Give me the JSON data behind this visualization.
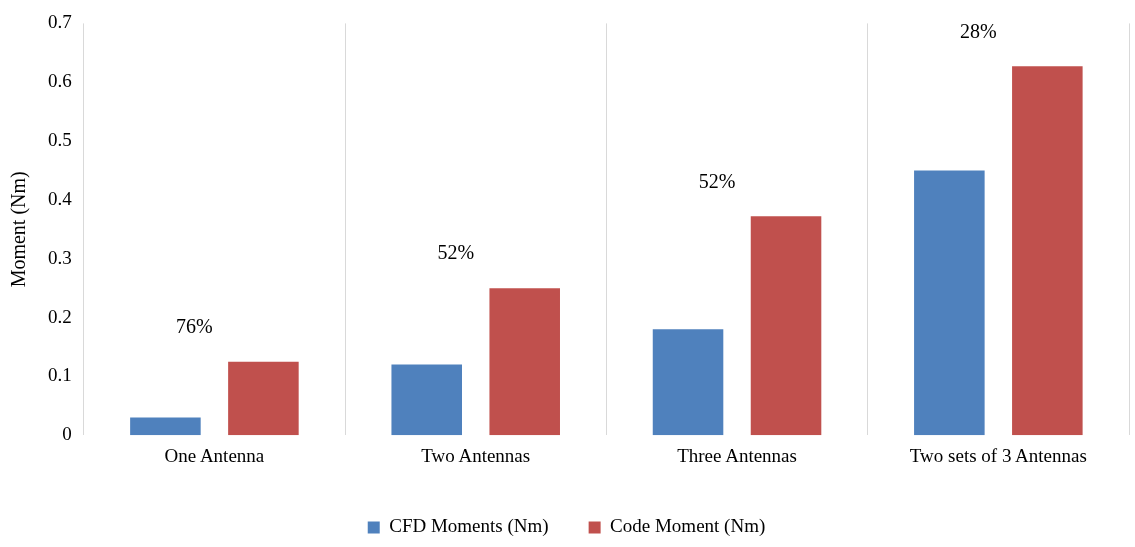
{
  "chart_data": {
    "type": "bar",
    "ylabel": "Moment (Nm)",
    "categories": [
      "One Antenna",
      "Two Antennas",
      "Three Antennas",
      "Two sets of 3 Antennas"
    ],
    "series": [
      {
        "name": "CFD Moments (Nm)",
        "color": "#4f81bd",
        "values": [
          0.03,
          0.12,
          0.18,
          0.45
        ]
      },
      {
        "name": "Code Moment (Nm)",
        "color": "#c0504d",
        "values": [
          0.125,
          0.25,
          0.372,
          0.627
        ]
      }
    ],
    "annotations": [
      "76%",
      "52%",
      "52%",
      "28%"
    ],
    "ylim": [
      0,
      0.7
    ],
    "yticks": [
      0,
      0.1,
      0.2,
      0.3,
      0.4,
      0.5,
      0.6,
      0.7
    ],
    "grid": "x",
    "legend": "bottom"
  }
}
